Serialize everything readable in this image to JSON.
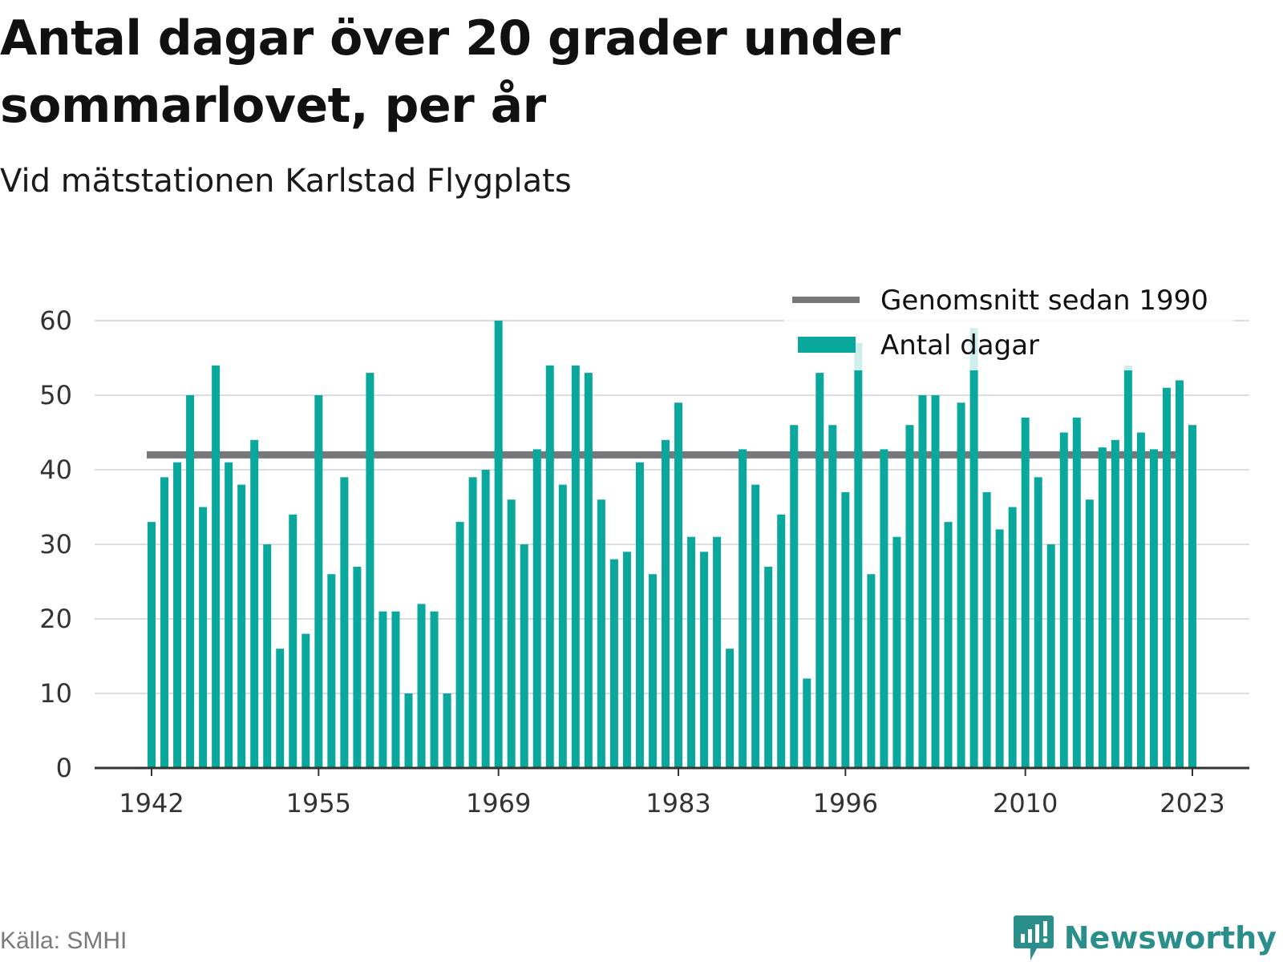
{
  "header": {
    "title": "Antal dagar över 20 grader under sommarlovet, per år",
    "subtitle": "Vid mätstationen Karlstad Flygplats"
  },
  "footer": {
    "source": "Källa: SMHI",
    "brand": "Newsworthy",
    "brand_icon": "newsworthy-logo-icon"
  },
  "colors": {
    "bars": "#0aa89c",
    "average": "#77777b",
    "grid": "#dddddd",
    "axis": "#333333",
    "brand": "#2a8f8a"
  },
  "chart_data": {
    "type": "bar",
    "title": "Antal dagar över 20 grader under sommarlovet, per år",
    "subtitle": "Vid mätstationen Karlstad Flygplats",
    "xlabel": "",
    "ylabel": "",
    "ylim": [
      0,
      60
    ],
    "yticks": [
      0,
      10,
      20,
      30,
      40,
      50,
      60
    ],
    "xticks": [
      1942,
      1955,
      1969,
      1983,
      1996,
      2010,
      2023
    ],
    "grid": true,
    "legend_position": "top-right",
    "x": [
      1942,
      1943,
      1944,
      1945,
      1946,
      1947,
      1948,
      1949,
      1950,
      1951,
      1952,
      1953,
      1954,
      1955,
      1956,
      1957,
      1958,
      1959,
      1960,
      1961,
      1962,
      1963,
      1964,
      1965,
      1966,
      1967,
      1968,
      1969,
      1970,
      1971,
      1972,
      1973,
      1974,
      1975,
      1976,
      1977,
      1978,
      1979,
      1980,
      1981,
      1982,
      1983,
      1984,
      1985,
      1986,
      1987,
      1988,
      1989,
      1990,
      1991,
      1992,
      1993,
      1994,
      1995,
      1996,
      1997,
      1998,
      1999,
      2000,
      2001,
      2002,
      2003,
      2004,
      2005,
      2006,
      2007,
      2008,
      2009,
      2010,
      2011,
      2012,
      2013,
      2014,
      2015,
      2016,
      2017,
      2018,
      2019,
      2020,
      2021,
      2022,
      2023
    ],
    "series": [
      {
        "name": "Antal dagar",
        "type": "bar",
        "values": [
          33,
          39,
          41,
          50,
          35,
          54,
          41,
          38,
          44,
          30,
          16,
          34,
          18,
          50,
          26,
          39,
          27,
          53,
          21,
          21,
          10,
          22,
          21,
          10,
          33,
          39,
          40,
          60,
          36,
          30,
          42,
          54,
          38,
          54,
          53,
          36,
          28,
          29,
          41,
          26,
          44,
          49,
          31,
          29,
          31,
          16,
          42,
          38,
          27,
          34,
          46,
          12,
          53,
          46,
          37,
          57,
          26,
          42,
          31,
          46,
          50,
          50,
          33,
          49,
          59,
          37,
          32,
          35,
          47,
          39,
          30,
          45,
          47,
          36,
          43,
          44,
          54,
          45,
          42,
          51,
          52,
          46
        ]
      },
      {
        "name": "Genomsnitt sedan 1990",
        "type": "line",
        "value": 42
      }
    ]
  }
}
